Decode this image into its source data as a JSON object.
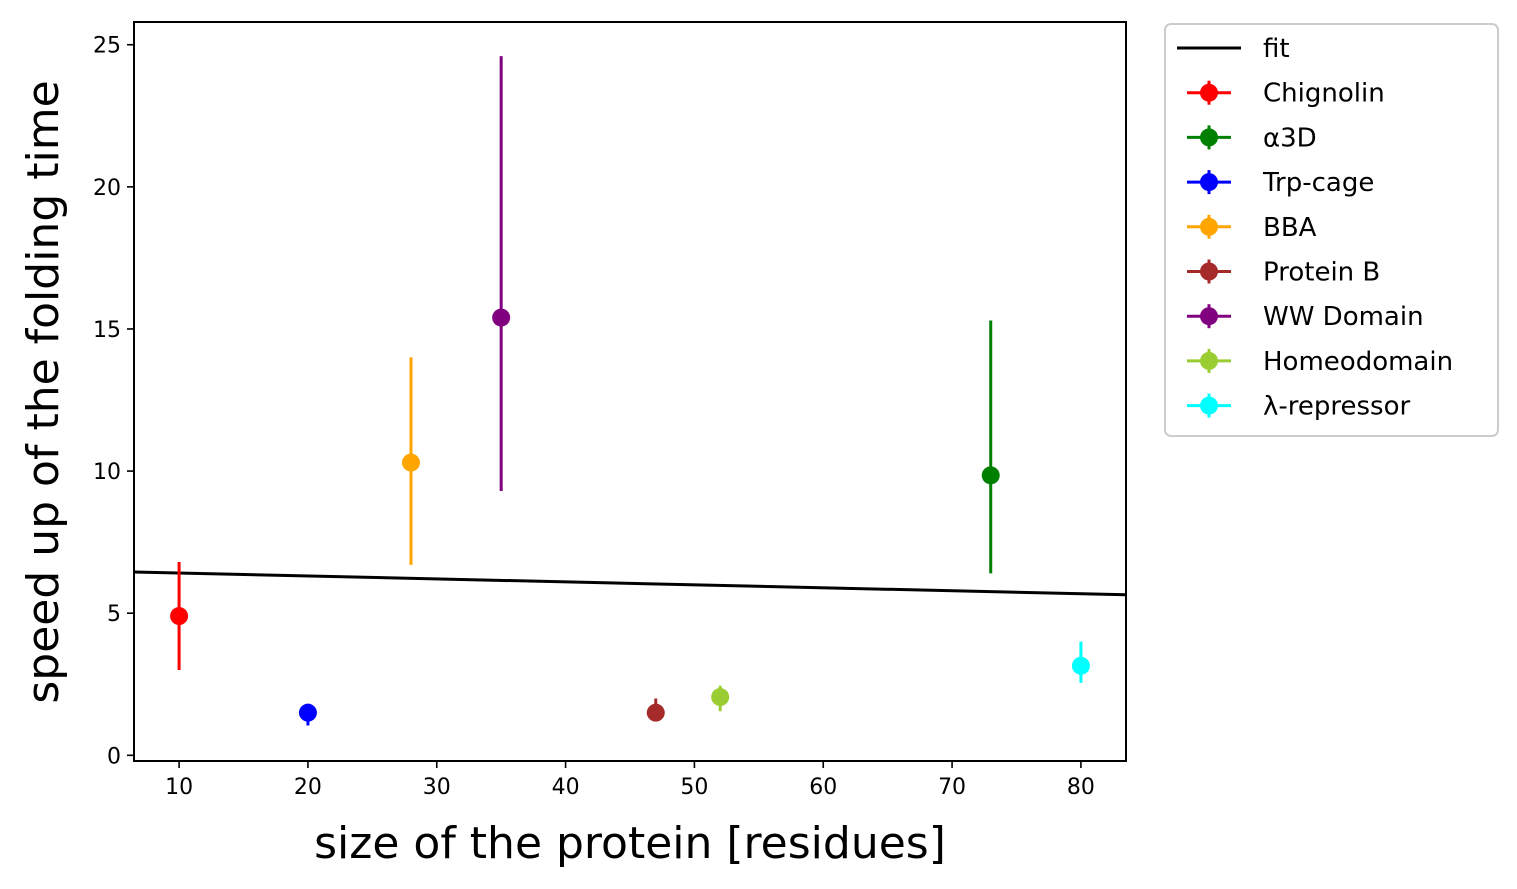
{
  "chart_data": {
    "type": "scatter",
    "title": "",
    "xlabel": "size of the protein [residues]",
    "ylabel": "speed up of the folding time",
    "xlim": [
      6.5,
      83.5
    ],
    "ylim": [
      -0.2,
      25.8
    ],
    "xticks": [
      10,
      20,
      30,
      40,
      50,
      60,
      70,
      80
    ],
    "yticks": [
      0,
      5,
      10,
      15,
      20,
      25
    ],
    "grid": false,
    "legend_position": "outside-right-top",
    "fit": {
      "name": "fit",
      "color": "#000000",
      "x": [
        6.5,
        83.5
      ],
      "y": [
        6.45,
        5.65
      ]
    },
    "series": [
      {
        "name": "Chignolin",
        "color": "#ff0000",
        "x": 10,
        "y": 4.9,
        "yerr_low": 3.0,
        "yerr_high": 6.8
      },
      {
        "name": "α3D",
        "color": "#008000",
        "x": 73,
        "y": 9.85,
        "yerr_low": 6.4,
        "yerr_high": 15.3
      },
      {
        "name": "Trp-cage",
        "color": "#0000ff",
        "x": 20,
        "y": 1.5,
        "yerr_low": 1.05,
        "yerr_high": 1.75
      },
      {
        "name": "BBA",
        "color": "#ffa500",
        "x": 28,
        "y": 10.3,
        "yerr_low": 6.7,
        "yerr_high": 14.0
      },
      {
        "name": "Protein B",
        "color": "#a52a2a",
        "x": 47,
        "y": 1.5,
        "yerr_low": 1.2,
        "yerr_high": 2.0
      },
      {
        "name": "WW Domain",
        "color": "#800080",
        "x": 35,
        "y": 15.4,
        "yerr_low": 9.3,
        "yerr_high": 24.6
      },
      {
        "name": "Homeodomain",
        "color": "#9acd32",
        "x": 52,
        "y": 2.05,
        "yerr_low": 1.55,
        "yerr_high": 2.45
      },
      {
        "name": "λ-repressor",
        "color": "#00ffff",
        "x": 80,
        "y": 3.15,
        "yerr_low": 2.55,
        "yerr_high": 4.0
      }
    ]
  }
}
